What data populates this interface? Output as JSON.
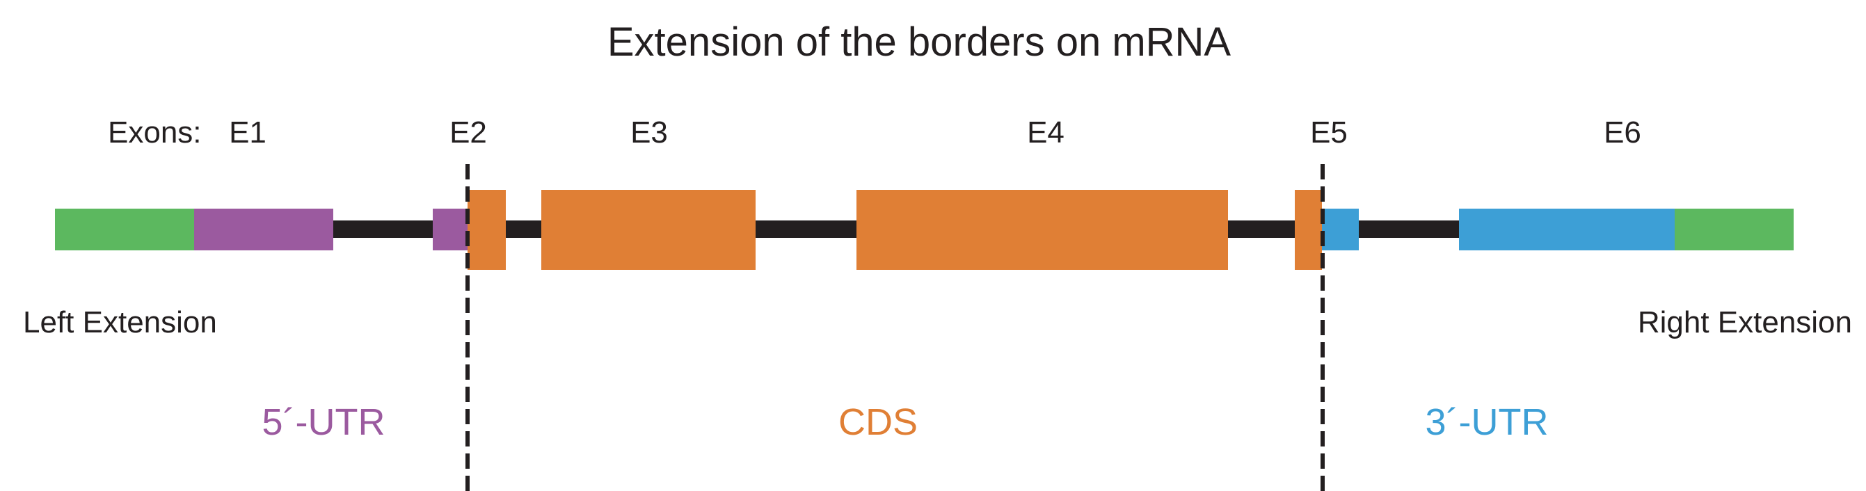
{
  "title": "Extension of the borders on mRNA",
  "exons_prefix": "Exons:",
  "exons": [
    "E1",
    "E2",
    "E3",
    "E4",
    "E5",
    "E6"
  ],
  "extensions": {
    "left": "Left Extension",
    "right": "Right Extension"
  },
  "regions": {
    "utr5": "5´-UTR",
    "cds": "CDS",
    "utr3": "3´-UTR"
  },
  "colors": {
    "extension": "#5cb85f",
    "utr5": "#9b5a9f",
    "cds": "#e07f35",
    "utr3": "#3d9fd6",
    "intron": "#231f20",
    "text": "#231f20"
  }
}
